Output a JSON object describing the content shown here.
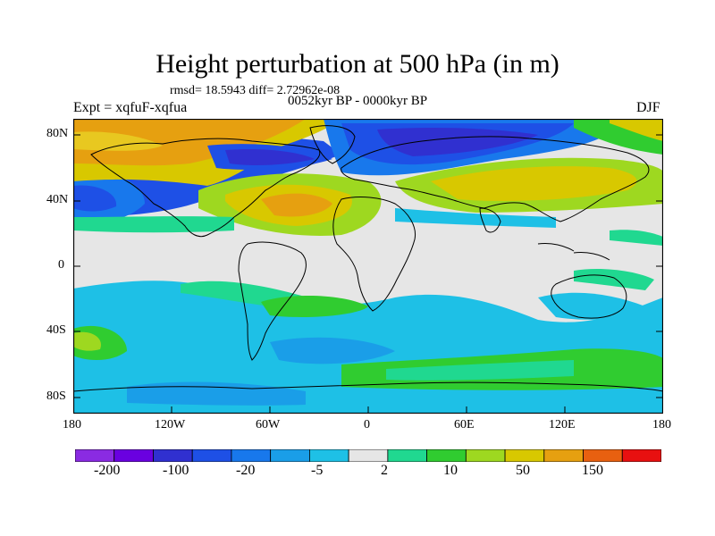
{
  "header": {
    "title": "Height perturbation at 500 hPa (in m)",
    "stats": "rmsd= 18.5943 diff= 2.72962e-08",
    "experiment": "Expt = xqfuF-xqfua",
    "period": "0052kyr BP - 0000kyr BP",
    "season": "DJF"
  },
  "map": {
    "projection": "cylindrical equidistant",
    "lon_range": [
      -180,
      180
    ],
    "lat_range": [
      -90,
      90
    ],
    "coastlines": true,
    "lat_tick_labels": [
      "80N",
      "40N",
      "0",
      "40S",
      "80S"
    ],
    "lon_tick_labels": [
      "180",
      "120W",
      "60W",
      "0",
      "60E",
      "120E",
      "180"
    ]
  },
  "colorbar": {
    "colors": [
      "#8a2be2",
      "#6a00e0",
      "#3030d0",
      "#1e50e6",
      "#1878ec",
      "#1a9ee8",
      "#1ec0e6",
      "#e6e6e6",
      "#20d890",
      "#30cc30",
      "#9ed820",
      "#d8c800",
      "#e6a010",
      "#e86010",
      "#e81010"
    ],
    "labels": [
      "-200",
      "-100",
      "-20",
      "-5",
      "2",
      "10",
      "50",
      "150"
    ]
  }
}
